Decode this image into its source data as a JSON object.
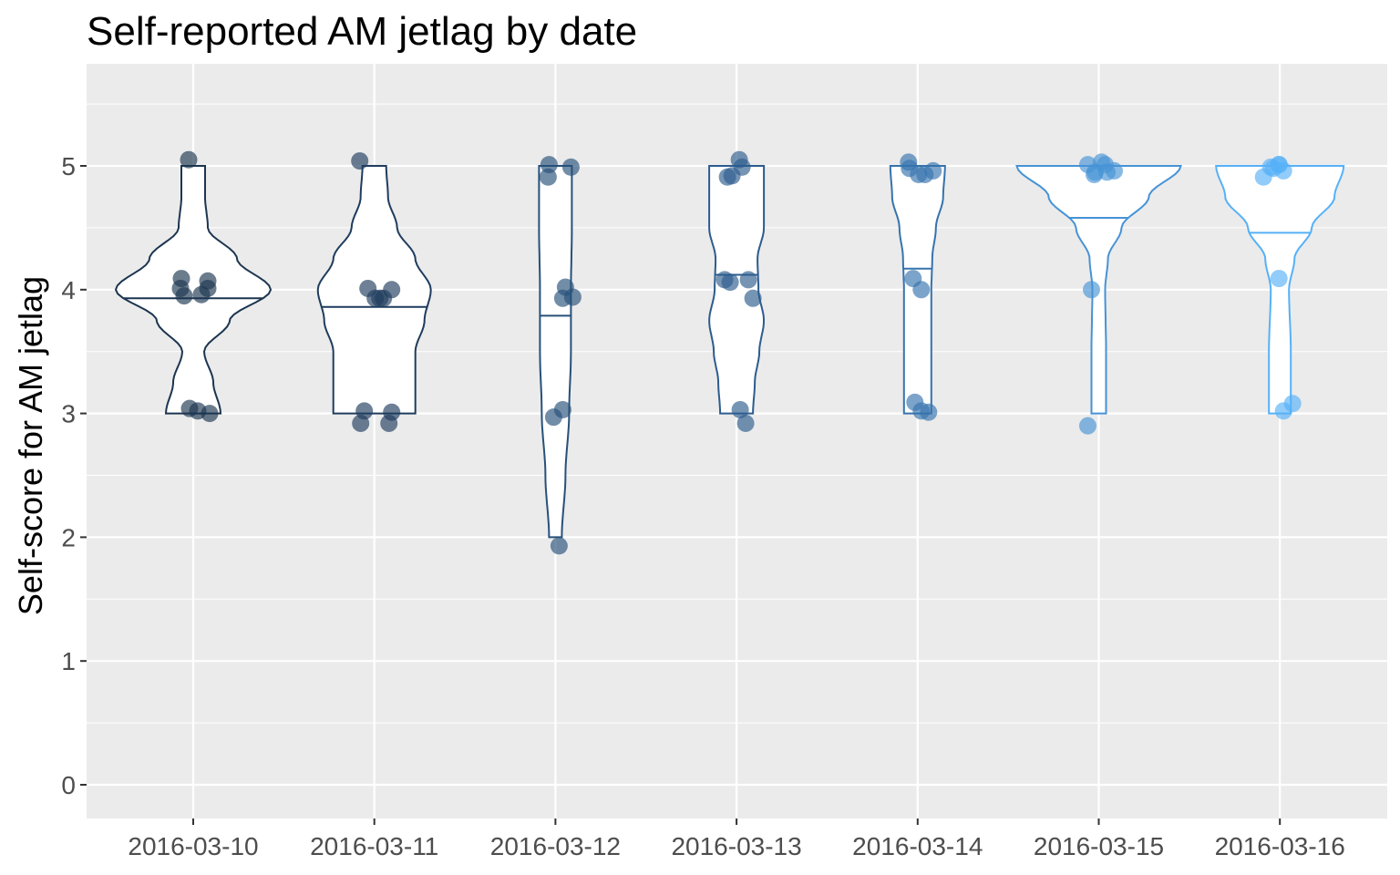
{
  "chart_data": {
    "type": "violin",
    "title": "Self-reported AM jetlag by date",
    "xlabel": "",
    "ylabel": "Self-score for AM jetlag",
    "categories": [
      "2016-03-10",
      "2016-03-11",
      "2016-03-12",
      "2016-03-13",
      "2016-03-14",
      "2016-03-15",
      "2016-03-16"
    ],
    "ylim": [
      -0.2,
      5.7
    ],
    "yticks": [
      0,
      1,
      2,
      3,
      4,
      5
    ],
    "grid": true,
    "legend": "none",
    "colors": [
      "#1c3550",
      "#1f3c5e",
      "#27507a",
      "#2c5c8e",
      "#3673ad",
      "#4693d6",
      "#56b1f7"
    ],
    "panel_background": "#ebebeb",
    "median_lines": [
      3.93,
      3.86,
      3.79,
      4.12,
      4.17,
      4.58,
      4.46
    ],
    "violins": [
      {
        "category": "2016-03-10",
        "profile": [
          [
            3.0,
            0.3
          ],
          [
            3.25,
            0.22
          ],
          [
            3.5,
            0.12
          ],
          [
            3.75,
            0.4
          ],
          [
            4.0,
            0.85
          ],
          [
            4.25,
            0.48
          ],
          [
            4.5,
            0.16
          ],
          [
            4.75,
            0.13
          ],
          [
            5.0,
            0.13
          ]
        ]
      },
      {
        "category": "2016-03-11",
        "profile": [
          [
            3.0,
            0.45
          ],
          [
            3.25,
            0.45
          ],
          [
            3.5,
            0.45
          ],
          [
            3.75,
            0.55
          ],
          [
            4.0,
            0.62
          ],
          [
            4.25,
            0.45
          ],
          [
            4.5,
            0.25
          ],
          [
            4.75,
            0.15
          ],
          [
            5.0,
            0.13
          ]
        ]
      },
      {
        "category": "2016-03-12",
        "profile": [
          [
            2.0,
            0.07
          ],
          [
            2.5,
            0.11
          ],
          [
            3.0,
            0.15
          ],
          [
            3.5,
            0.17
          ],
          [
            4.0,
            0.17
          ],
          [
            4.5,
            0.18
          ],
          [
            5.0,
            0.18
          ]
        ]
      },
      {
        "category": "2016-03-13",
        "profile": [
          [
            3.0,
            0.18
          ],
          [
            3.25,
            0.2
          ],
          [
            3.5,
            0.25
          ],
          [
            3.75,
            0.3
          ],
          [
            4.0,
            0.24
          ],
          [
            4.25,
            0.23
          ],
          [
            4.5,
            0.3
          ],
          [
            4.75,
            0.3
          ],
          [
            5.0,
            0.3
          ]
        ]
      },
      {
        "category": "2016-03-14",
        "profile": [
          [
            3.0,
            0.15
          ],
          [
            3.5,
            0.15
          ],
          [
            4.0,
            0.15
          ],
          [
            4.25,
            0.16
          ],
          [
            4.5,
            0.2
          ],
          [
            4.75,
            0.28
          ],
          [
            5.0,
            0.3
          ]
        ]
      },
      {
        "category": "2016-03-15",
        "profile": [
          [
            3.0,
            0.08
          ],
          [
            3.5,
            0.08
          ],
          [
            4.0,
            0.07
          ],
          [
            4.25,
            0.1
          ],
          [
            4.5,
            0.25
          ],
          [
            4.75,
            0.55
          ],
          [
            5.0,
            0.9
          ]
        ]
      },
      {
        "category": "2016-03-16",
        "profile": [
          [
            3.0,
            0.12
          ],
          [
            3.5,
            0.12
          ],
          [
            4.0,
            0.1
          ],
          [
            4.25,
            0.16
          ],
          [
            4.5,
            0.35
          ],
          [
            4.75,
            0.6
          ],
          [
            5.0,
            0.7
          ]
        ]
      }
    ],
    "points": [
      {
        "category": "2016-03-10",
        "values": [
          5.05,
          4.09,
          4.01,
          3.95,
          3.96,
          4.01,
          4.07,
          3.04,
          3.02,
          3.0
        ]
      },
      {
        "category": "2016-03-11",
        "values": [
          5.04,
          4.01,
          3.93,
          3.93,
          3.93,
          4.0,
          3.02,
          2.92,
          3.01,
          2.92
        ]
      },
      {
        "category": "2016-03-12",
        "values": [
          5.01,
          4.91,
          4.99,
          4.02,
          3.93,
          3.94,
          2.97,
          3.03,
          1.93
        ]
      },
      {
        "category": "2016-03-13",
        "values": [
          5.05,
          4.91,
          4.92,
          4.99,
          4.08,
          4.06,
          4.08,
          3.93,
          3.03,
          2.92
        ]
      },
      {
        "category": "2016-03-14",
        "values": [
          5.03,
          4.98,
          4.93,
          4.93,
          4.96,
          4.09,
          4.0,
          3.09,
          3.02,
          3.01
        ]
      },
      {
        "category": "2016-03-15",
        "values": [
          5.01,
          4.93,
          5.01,
          4.95,
          5.03,
          4.96,
          4.95,
          4.0,
          2.9
        ]
      },
      {
        "category": "2016-03-16",
        "values": [
          4.91,
          4.99,
          5.01,
          4.98,
          5.01,
          4.96,
          4.09,
          3.02,
          3.08
        ]
      }
    ],
    "point_x_jitter": [
      [
        -0.05,
        -0.13,
        -0.14,
        -0.1,
        0.09,
        0.16,
        0.16,
        -0.04,
        0.05,
        0.18
      ],
      [
        -0.16,
        -0.07,
        0.01,
        0.06,
        0.1,
        0.19,
        -0.11,
        -0.15,
        0.19,
        0.16
      ],
      [
        -0.07,
        -0.08,
        0.17,
        0.11,
        0.08,
        0.19,
        -0.02,
        0.08,
        0.04
      ],
      [
        0.03,
        -0.1,
        -0.05,
        0.06,
        -0.13,
        -0.07,
        0.13,
        0.18,
        0.04,
        0.1
      ],
      [
        -0.1,
        -0.09,
        0.01,
        0.08,
        0.17,
        -0.05,
        0.04,
        -0.03,
        0.04,
        0.12
      ],
      [
        -0.12,
        -0.05,
        0.07,
        -0.04,
        0.03,
        0.17,
        0.09,
        -0.08,
        -0.12
      ],
      [
        -0.18,
        -0.1,
        -0.01,
        -0.07,
        -0.01,
        0.04,
        -0.01,
        0.04,
        0.14
      ]
    ]
  }
}
